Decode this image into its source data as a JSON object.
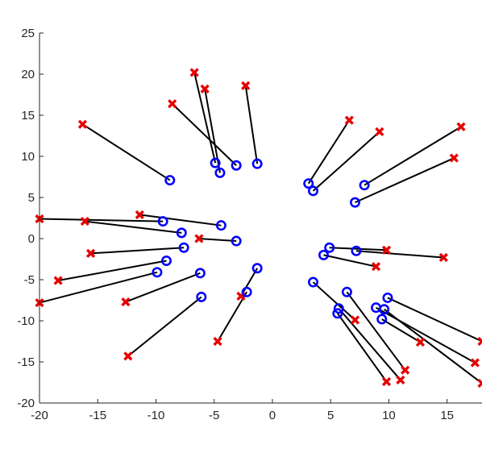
{
  "chart_data": {
    "type": "scatter",
    "title": "",
    "xlabel": "",
    "ylabel": "",
    "xlim": [
      -20,
      18
    ],
    "ylim": [
      -20,
      25
    ],
    "xticks": [
      -20,
      -15,
      -10,
      -5,
      0,
      5,
      10,
      15
    ],
    "yticks": [
      -20,
      -15,
      -10,
      -5,
      0,
      5,
      10,
      15,
      20,
      25
    ],
    "grid": false,
    "colors": {
      "circle": "#0000ff",
      "cross": "#e60000",
      "line": "#000000",
      "axis": "#262626"
    },
    "pairs": [
      {
        "o": [
          -8.8,
          7.1
        ],
        "x": [
          -16.3,
          13.9
        ]
      },
      {
        "o": [
          -4.9,
          9.2
        ],
        "x": [
          -6.7,
          20.2
        ]
      },
      {
        "o": [
          -4.5,
          8.0
        ],
        "x": [
          -5.8,
          18.2
        ]
      },
      {
        "o": [
          -3.1,
          8.9
        ],
        "x": [
          -8.6,
          16.4
        ]
      },
      {
        "o": [
          -1.3,
          9.1
        ],
        "x": [
          -2.3,
          18.6
        ]
      },
      {
        "o": [
          3.1,
          6.7
        ],
        "x": [
          6.6,
          14.4
        ]
      },
      {
        "o": [
          3.5,
          5.8
        ],
        "x": [
          9.2,
          13.0
        ]
      },
      {
        "o": [
          7.9,
          6.5
        ],
        "x": [
          16.2,
          13.6
        ]
      },
      {
        "o": [
          7.1,
          4.4
        ],
        "x": [
          15.6,
          9.8
        ]
      },
      {
        "o": [
          -9.4,
          2.1
        ],
        "x": [
          -20.0,
          2.4
        ]
      },
      {
        "o": [
          -4.4,
          1.6
        ],
        "x": [
          -11.4,
          2.9
        ]
      },
      {
        "o": [
          -7.8,
          0.7
        ],
        "x": [
          -16.1,
          2.1
        ]
      },
      {
        "o": [
          -3.1,
          -0.3
        ],
        "x": [
          -6.3,
          0.0
        ]
      },
      {
        "o": [
          -7.6,
          -1.1
        ],
        "x": [
          -15.6,
          -1.8
        ]
      },
      {
        "o": [
          -9.1,
          -2.7
        ],
        "x": [
          -18.4,
          -5.1
        ]
      },
      {
        "o": [
          -9.9,
          -4.1
        ],
        "x": [
          -20.0,
          -7.8
        ]
      },
      {
        "o": [
          -6.2,
          -4.2
        ],
        "x": [
          -12.6,
          -7.7
        ]
      },
      {
        "o": [
          -6.1,
          -7.1
        ],
        "x": [
          -12.4,
          -14.3
        ]
      },
      {
        "o": [
          -1.3,
          -3.6
        ],
        "x": [
          -2.7,
          -7.0
        ]
      },
      {
        "o": [
          -2.2,
          -6.5
        ],
        "x": [
          -4.7,
          -12.5
        ]
      },
      {
        "o": [
          4.9,
          -1.1
        ],
        "x": [
          9.8,
          -1.4
        ]
      },
      {
        "o": [
          7.2,
          -1.5
        ],
        "x": [
          14.7,
          -2.3
        ]
      },
      {
        "o": [
          4.4,
          -2.0
        ],
        "x": [
          8.9,
          -3.4
        ]
      },
      {
        "o": [
          3.5,
          -5.3
        ],
        "x": [
          7.1,
          -9.9
        ]
      },
      {
        "o": [
          6.4,
          -6.5
        ],
        "x": [
          11.4,
          -16.0
        ]
      },
      {
        "o": [
          5.7,
          -8.5
        ],
        "x": [
          11.0,
          -17.2
        ]
      },
      {
        "o": [
          5.6,
          -9.1
        ],
        "x": [
          9.8,
          -17.4
        ]
      },
      {
        "o": [
          9.9,
          -7.2
        ],
        "x": [
          18.0,
          -12.5
        ]
      },
      {
        "o": [
          8.9,
          -8.4
        ],
        "x": [
          17.4,
          -15.1
        ]
      },
      {
        "o": [
          9.4,
          -9.8
        ],
        "x": [
          12.7,
          -12.6
        ]
      },
      {
        "o": [
          9.6,
          -8.6
        ],
        "x": [
          18.0,
          -17.6
        ]
      }
    ]
  }
}
